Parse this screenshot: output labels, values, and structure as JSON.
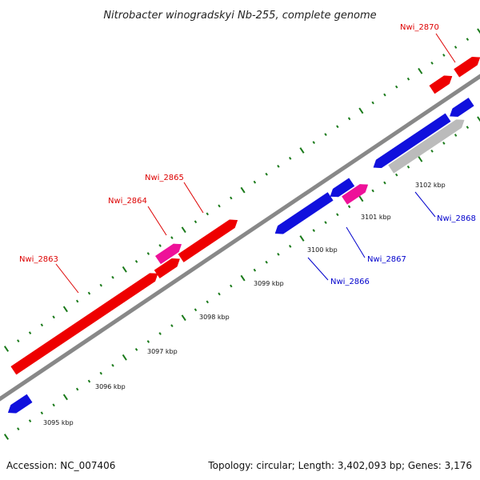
{
  "title": "Nitrobacter winogradskyi Nb-255, complete genome",
  "footer": {
    "accession": "Accession: NC_007406",
    "summary": "Topology: circular; Length: 3,402,093 bp; Genes: 3,176"
  },
  "colors": {
    "forward_gene": "#ee0000",
    "reverse_gene": "#1010dd",
    "pseudo_gene": "#ee1199",
    "rna_gene": "#bbbbbb",
    "backbone": "#888888",
    "tick": "#1a7a1a",
    "forward_label": "#dd0000",
    "reverse_label": "#0000cc"
  },
  "tick_labels": [
    "3095 kbp",
    "3096 kbp",
    "3097 kbp",
    "3098 kbp",
    "3099 kbp",
    "3100 kbp",
    "3101 kbp",
    "3102 kbp"
  ],
  "gene_labels": [
    "Nwi_2863",
    "Nwi_2864",
    "Nwi_2865",
    "Nwi_2866",
    "Nwi_2867",
    "Nwi_2868",
    "Nwi_2870"
  ]
}
